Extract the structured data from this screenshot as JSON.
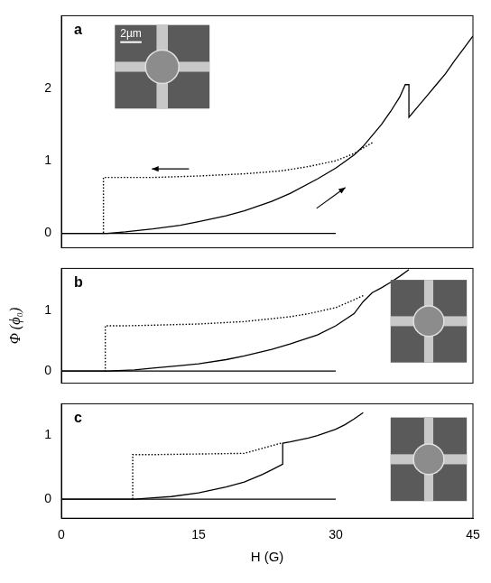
{
  "chart_data": [
    {
      "type": "line",
      "label": "a",
      "xlim": [
        0,
        45
      ],
      "ylim": [
        -0.2,
        3.0
      ],
      "yticks": [
        0,
        1,
        2
      ],
      "tick_labels": "y",
      "grid": false,
      "annotations": [
        "2µm"
      ],
      "series": [
        {
          "color": "#000000",
          "line_style": "solid",
          "x": [
            0,
            5,
            7,
            10,
            13,
            15,
            18,
            20,
            23,
            25,
            28,
            30,
            32,
            33,
            35,
            36,
            37,
            37.6,
            38,
            38,
            39,
            40,
            41,
            42,
            43,
            44,
            45
          ],
          "values": [
            0,
            0,
            0.02,
            0.06,
            0.11,
            0.16,
            0.24,
            0.31,
            0.44,
            0.55,
            0.75,
            0.9,
            1.08,
            1.2,
            1.5,
            1.68,
            1.88,
            2.05,
            2.05,
            1.6,
            1.75,
            1.9,
            2.05,
            2.2,
            2.38,
            2.55,
            2.72
          ]
        },
        {
          "color": "#000000",
          "line_style": "dotted",
          "x": [
            34,
            32,
            30,
            27,
            24,
            20,
            15,
            10,
            7,
            4.6,
            4.6
          ],
          "values": [
            1.25,
            1.1,
            1.0,
            0.92,
            0.86,
            0.82,
            0.79,
            0.77,
            0.77,
            0.77,
            0
          ]
        },
        {
          "color": "#000000",
          "line_style": "solid",
          "x": [
            0,
            30
          ],
          "values": [
            0,
            0
          ]
        }
      ]
    },
    {
      "type": "line",
      "label": "b",
      "xlim": [
        0,
        45
      ],
      "ylim": [
        -0.2,
        1.7
      ],
      "yticks": [
        0,
        1
      ],
      "y_label": "Φ (ϕ₀)",
      "tick_labels": "y",
      "grid": false,
      "series": [
        {
          "color": "#000000",
          "line_style": "solid",
          "x": [
            0,
            5,
            8,
            10,
            13,
            15,
            18,
            20,
            23,
            25,
            28,
            30,
            32,
            33,
            34,
            35,
            36,
            37,
            38
          ],
          "values": [
            0,
            0,
            0.02,
            0.05,
            0.09,
            0.12,
            0.19,
            0.25,
            0.36,
            0.45,
            0.6,
            0.75,
            0.95,
            1.15,
            1.3,
            1.38,
            1.47,
            1.57,
            1.68
          ]
        },
        {
          "color": "#000000",
          "line_style": "dotted",
          "x": [
            33,
            32,
            30,
            27,
            25,
            20,
            15,
            10,
            7,
            4.8,
            4.8
          ],
          "values": [
            1.25,
            1.18,
            1.05,
            0.95,
            0.9,
            0.82,
            0.78,
            0.76,
            0.75,
            0.75,
            0
          ]
        },
        {
          "color": "#000000",
          "line_style": "solid",
          "x": [
            0,
            30
          ],
          "values": [
            0,
            0
          ]
        }
      ]
    },
    {
      "type": "line",
      "label": "c",
      "xlim": [
        0,
        45
      ],
      "xticks": [
        0,
        15,
        30,
        45
      ],
      "ylim": [
        -0.3,
        1.5
      ],
      "yticks": [
        0,
        1
      ],
      "x_label": "H (G)",
      "grid": false,
      "series": [
        {
          "color": "#000000",
          "line_style": "solid",
          "x": [
            0,
            8,
            10,
            12,
            15,
            18,
            20,
            21,
            22,
            23,
            24.2,
            24.2,
            25,
            27,
            28,
            30,
            31,
            32,
            33
          ],
          "values": [
            0,
            0,
            0.02,
            0.04,
            0.1,
            0.19,
            0.27,
            0.33,
            0.39,
            0.46,
            0.55,
            0.88,
            0.9,
            0.96,
            1.0,
            1.1,
            1.17,
            1.26,
            1.36
          ]
        },
        {
          "color": "#000000",
          "line_style": "dotted",
          "x": [
            24,
            20,
            15,
            10,
            8,
            7.8,
            7.8
          ],
          "values": [
            0.88,
            0.72,
            0.71,
            0.7,
            0.7,
            0.7,
            0
          ]
        },
        {
          "color": "#000000",
          "line_style": "solid",
          "x": [
            0,
            30
          ],
          "values": [
            0,
            0
          ]
        }
      ]
    }
  ]
}
